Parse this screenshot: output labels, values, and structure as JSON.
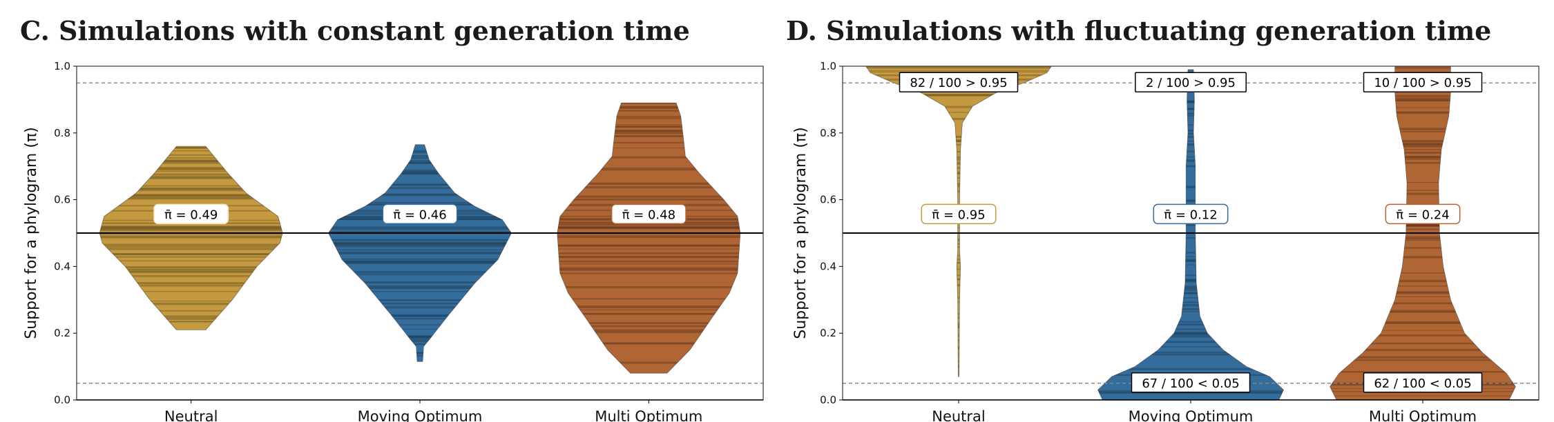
{
  "chart_data": [
    {
      "type": "violin",
      "title": "C. Simulations with constant generation time",
      "ylabel": "Support for a phylogram (π)",
      "ylim": [
        0,
        1
      ],
      "yticks": [
        "0.0",
        "0.2",
        "0.4",
        "0.6",
        "0.8",
        "1.0"
      ],
      "categories": [
        "Neutral",
        "Moving Optimum",
        "Multi Optimum"
      ],
      "reference_lines": {
        "solid": 0.5,
        "dashed": [
          0.05,
          0.95
        ]
      },
      "grid": false,
      "series": [
        {
          "category": "Neutral",
          "color": "#c4993f",
          "mean": 0.49,
          "mean_label": "π̄ = 0.49",
          "range": [
            0.21,
            0.76
          ],
          "density": [
            [
              0.21,
              0.16
            ],
            [
              0.3,
              0.45
            ],
            [
              0.4,
              0.72
            ],
            [
              0.47,
              0.97
            ],
            [
              0.5,
              1.0
            ],
            [
              0.55,
              0.95
            ],
            [
              0.58,
              0.8
            ],
            [
              0.62,
              0.6
            ],
            [
              0.68,
              0.4
            ],
            [
              0.76,
              0.16
            ]
          ]
        },
        {
          "category": "Moving Optimum",
          "color": "#346c9b",
          "mean": 0.46,
          "mean_label": "π̄ = 0.46",
          "range": [
            0.115,
            0.765
          ],
          "density": [
            [
              0.115,
              0.03
            ],
            [
              0.16,
              0.04
            ],
            [
              0.18,
              0.1
            ],
            [
              0.25,
              0.3
            ],
            [
              0.35,
              0.6
            ],
            [
              0.42,
              0.85
            ],
            [
              0.5,
              1.0
            ],
            [
              0.54,
              0.9
            ],
            [
              0.58,
              0.6
            ],
            [
              0.62,
              0.38
            ],
            [
              0.68,
              0.2
            ],
            [
              0.72,
              0.1
            ],
            [
              0.765,
              0.05
            ]
          ]
        },
        {
          "category": "Multi Optimum",
          "color": "#b06534",
          "mean": 0.48,
          "mean_label": "π̄ = 0.48",
          "range": [
            0.08,
            0.89
          ],
          "density": [
            [
              0.08,
              0.2
            ],
            [
              0.15,
              0.45
            ],
            [
              0.25,
              0.7
            ],
            [
              0.32,
              0.88
            ],
            [
              0.38,
              0.97
            ],
            [
              0.5,
              1.0
            ],
            [
              0.55,
              0.97
            ],
            [
              0.6,
              0.82
            ],
            [
              0.68,
              0.55
            ],
            [
              0.73,
              0.4
            ],
            [
              0.78,
              0.38
            ],
            [
              0.85,
              0.35
            ],
            [
              0.89,
              0.3
            ]
          ]
        }
      ]
    },
    {
      "type": "violin",
      "title": "D. Simulations with fluctuating generation time",
      "ylabel": "Support for a phylogram (π)",
      "ylim": [
        0,
        1
      ],
      "yticks": [
        "0.0",
        "0.2",
        "0.4",
        "0.6",
        "0.8",
        "1.0"
      ],
      "categories": [
        "Neutral",
        "Moving Optimum",
        "Multi Optimum"
      ],
      "reference_lines": {
        "solid": 0.5,
        "dashed": [
          0.05,
          0.95
        ]
      },
      "grid": false,
      "series": [
        {
          "category": "Neutral",
          "color": "#c4993f",
          "mean": 0.95,
          "mean_label": "π̄ = 0.95",
          "above_label": "82 / 100 > 0.95",
          "below_label": "",
          "range": [
            0.07,
            1.0
          ],
          "density": [
            [
              0.07,
              0.005
            ],
            [
              0.3,
              0.01
            ],
            [
              0.4,
              0.02
            ],
            [
              0.45,
              0.01
            ],
            [
              0.6,
              0.01
            ],
            [
              0.75,
              0.02
            ],
            [
              0.83,
              0.04
            ],
            [
              0.88,
              0.15
            ],
            [
              0.92,
              0.4
            ],
            [
              0.95,
              0.7
            ],
            [
              0.98,
              0.95
            ],
            [
              1.0,
              1.0
            ]
          ]
        },
        {
          "category": "Moving Optimum",
          "color": "#346c9b",
          "mean": 0.12,
          "mean_label": "π̄ = 0.12",
          "above_label": "2 / 100 > 0.95",
          "below_label": "67 / 100 < 0.05",
          "range": [
            0.0,
            0.99
          ],
          "density": [
            [
              0.0,
              0.95
            ],
            [
              0.03,
              1.0
            ],
            [
              0.07,
              0.85
            ],
            [
              0.1,
              0.6
            ],
            [
              0.15,
              0.35
            ],
            [
              0.2,
              0.18
            ],
            [
              0.25,
              0.1
            ],
            [
              0.35,
              0.06
            ],
            [
              0.5,
              0.05
            ],
            [
              0.7,
              0.05
            ],
            [
              0.8,
              0.03
            ],
            [
              0.9,
              0.04
            ],
            [
              0.99,
              0.03
            ]
          ]
        },
        {
          "category": "Multi Optimum",
          "color": "#b06534",
          "mean": 0.24,
          "mean_label": "π̄ = 0.24",
          "above_label": "10 / 100 > 0.95",
          "below_label": "62 / 100 < 0.05",
          "range": [
            0.0,
            1.0
          ],
          "density": [
            [
              0.0,
              0.93
            ],
            [
              0.04,
              1.0
            ],
            [
              0.08,
              0.9
            ],
            [
              0.14,
              0.65
            ],
            [
              0.2,
              0.45
            ],
            [
              0.3,
              0.3
            ],
            [
              0.4,
              0.22
            ],
            [
              0.5,
              0.18
            ],
            [
              0.65,
              0.17
            ],
            [
              0.75,
              0.2
            ],
            [
              0.85,
              0.28
            ],
            [
              0.92,
              0.3
            ],
            [
              1.0,
              0.3
            ]
          ]
        }
      ]
    }
  ]
}
